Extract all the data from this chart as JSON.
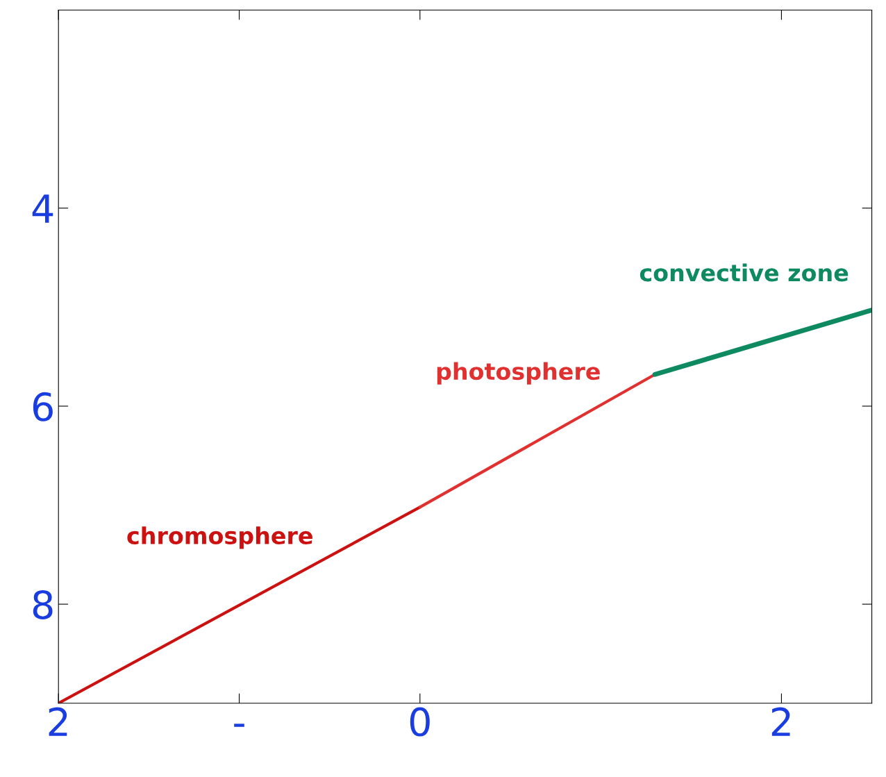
{
  "chart_data": {
    "type": "line",
    "series": [
      {
        "name": "chromosphere",
        "color": "#cc1111",
        "x": [
          -2,
          0
        ],
        "values": [
          9,
          7.02
        ]
      },
      {
        "name": "photosphere",
        "color": "#e03030",
        "x": [
          0,
          1.3
        ],
        "values": [
          7.02,
          5.68
        ]
      },
      {
        "name": "convective zone",
        "color": "#0e8a60",
        "x": [
          1.3,
          2.5
        ],
        "values": [
          5.68,
          5.03
        ]
      }
    ],
    "xlim": [
      -2,
      2.5
    ],
    "xticks": [
      {
        "value": -2,
        "label": "2"
      },
      {
        "value": -1,
        "label": "-"
      },
      0,
      2
    ],
    "ylim": [
      9,
      2
    ],
    "yticks": [
      4,
      6,
      8
    ],
    "grid": false,
    "legend": false,
    "marker": "none",
    "line_style": "solid"
  }
}
